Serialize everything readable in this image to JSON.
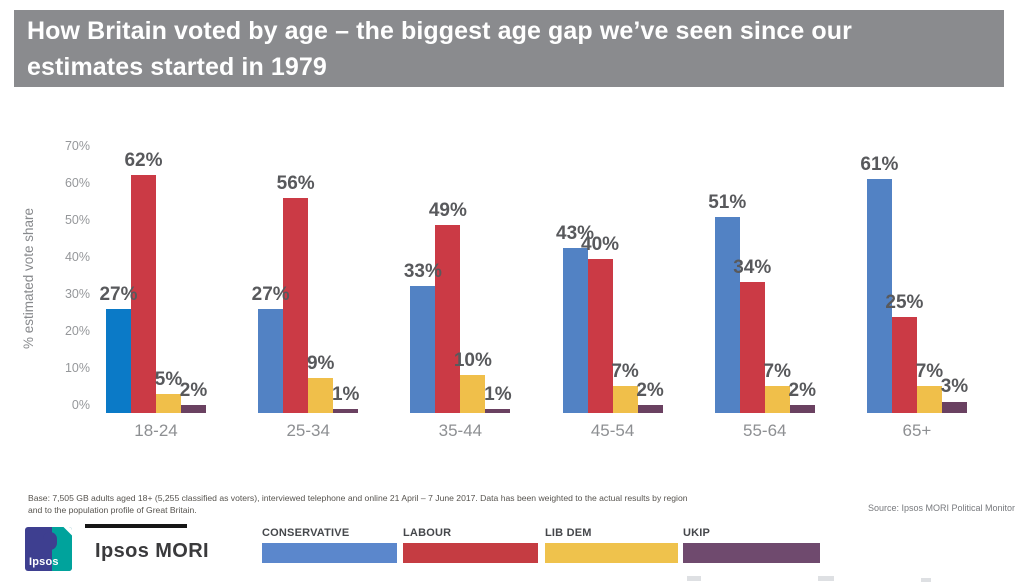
{
  "title": {
    "line1": "How Britain voted by age – the biggest age gap we’ve seen since our",
    "line2": "estimates started in 1979"
  },
  "colors": {
    "banner_bg": "#8a8b8e",
    "title_text": "#ffffff"
  },
  "chart_data": {
    "type": "bar",
    "title": "How Britain voted by age – the biggest age gap we’ve seen since our estimates started in 1979",
    "xlabel": "",
    "ylabel": "% estimated vote share",
    "ylim": [
      0,
      70
    ],
    "ytick_labels": [
      "0%",
      "10%",
      "20%",
      "30%",
      "40%",
      "50%",
      "60%",
      "70%"
    ],
    "grid": false,
    "legend_position": "bottom",
    "data_label_suffix": "%",
    "categories": [
      "18-24",
      "25-34",
      "35-44",
      "45-54",
      "55-64",
      "65+"
    ],
    "series": [
      {
        "name": "CONSERVATIVE",
        "color": "#5282c4",
        "values": [
          27,
          27,
          33,
          43,
          51,
          61
        ]
      },
      {
        "name": "LABOUR",
        "color": "#cb3a45",
        "values": [
          62,
          56,
          49,
          40,
          34,
          25
        ]
      },
      {
        "name": "LIB DEM",
        "color": "#f0bf4a",
        "values": [
          5,
          9,
          10,
          7,
          7,
          7
        ]
      },
      {
        "name": "UKIP",
        "color": "#6a4161",
        "values": [
          2,
          1,
          1,
          2,
          2,
          3
        ]
      }
    ],
    "highlight": {
      "series": "CONSERVATIVE",
      "category": "18-24",
      "color": "#0b7ac7"
    }
  },
  "legend": {
    "items": [
      {
        "label": "CONSERVATIVE",
        "color": "#5b87cc"
      },
      {
        "label": "LABOUR",
        "color": "#c53c42"
      },
      {
        "label": "LIB DEM",
        "color": "#efc24c"
      },
      {
        "label": "UKIP",
        "color": "#6f4a6e"
      }
    ]
  },
  "footer": {
    "base_text": "Base: 7,505 GB adults aged 18+ (5,255 classified as voters), interviewed telephone and online 21 April – 7 June 2017. Data has been weighted to the actual results by region and to the population profile of Great Britain.",
    "source": "Source: Ipsos MORI Political Monitor"
  },
  "branding": {
    "logo_label": "Ipsos",
    "name": "Ipsos MORI"
  }
}
